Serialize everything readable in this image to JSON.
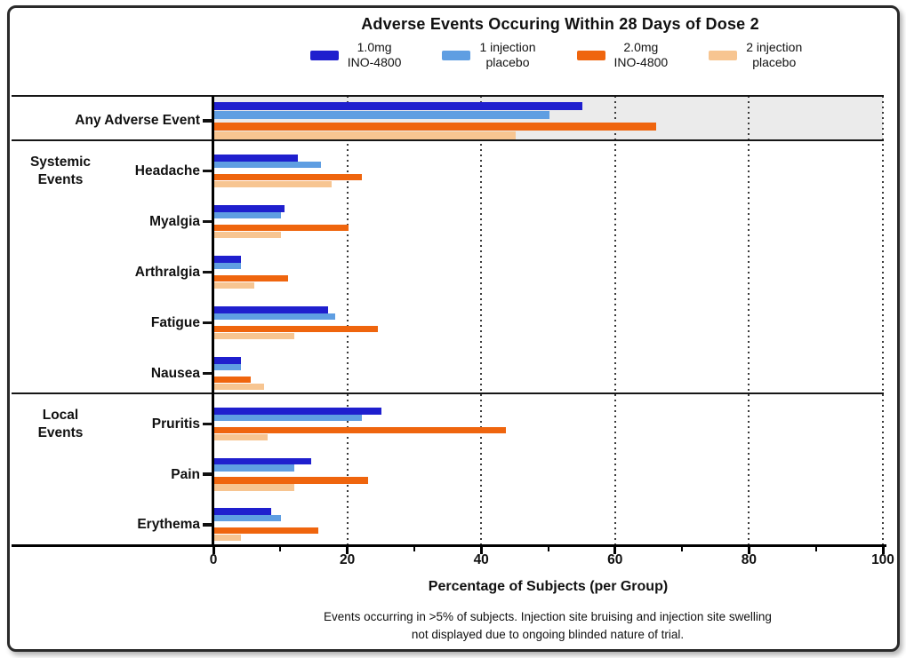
{
  "figure": {
    "title": "Adverse Events Occuring Within 28 Days of Dose 2",
    "x_axis_title": "Percentage of Subjects (per Group)",
    "footnote": "Events occurring in >5% of subjects. Injection site bruising and injection site swelling\nnot displayed due to ongoing blinded nature of trial."
  },
  "colors": {
    "dose_1mg": "#1f1fce",
    "placebo_1inj": "#5f9ee2",
    "dose_2mg": "#ef650e",
    "placebo_2inj": "#f7c591",
    "highlight_band": "#ebebeb",
    "axis": "#000000",
    "grid_dots": "#3a3a3a"
  },
  "chart_data": {
    "type": "bar",
    "orientation": "horizontal",
    "title": "Adverse Events Occuring Within 28 Days of Dose 2",
    "xlabel": "Percentage of Subjects (per Group)",
    "ylabel": "",
    "xlim": [
      0,
      100
    ],
    "xticks": [
      0,
      20,
      40,
      60,
      80,
      100
    ],
    "x_minor_ticks": [
      10,
      30,
      50,
      70,
      90
    ],
    "grid": "dotted vertical lines at major ticks",
    "legend_position": "top",
    "series": [
      {
        "name": "1.0mg INO-4800",
        "label_lines": "1.0mg\nINO-4800",
        "color": "#1f1fce"
      },
      {
        "name": "1 injection placebo",
        "label_lines": "1 injection\nplacebo",
        "color": "#5f9ee2"
      },
      {
        "name": "2.0mg INO-4800",
        "label_lines": "2.0mg\nINO-4800",
        "color": "#ef650e"
      },
      {
        "name": "2 injection placebo",
        "label_lines": "2 injection\nplacebo",
        "color": "#f7c591"
      }
    ],
    "groups": [
      {
        "label": "Any Adverse Event",
        "section": null,
        "highlighted": true,
        "values": [
          55,
          50,
          66,
          45
        ]
      },
      {
        "label": "Headache",
        "section": "Systemic Events",
        "highlighted": false,
        "values": [
          12.5,
          16,
          22,
          17.5
        ]
      },
      {
        "label": "Myalgia",
        "section": "Systemic Events",
        "highlighted": false,
        "values": [
          10.5,
          10,
          20,
          10
        ]
      },
      {
        "label": "Arthralgia",
        "section": "Systemic Events",
        "highlighted": false,
        "values": [
          4,
          4,
          11,
          6
        ]
      },
      {
        "label": "Fatigue",
        "section": "Systemic Events",
        "highlighted": false,
        "values": [
          17,
          18,
          24.5,
          12
        ]
      },
      {
        "label": "Nausea",
        "section": "Systemic Events",
        "highlighted": false,
        "values": [
          4,
          4,
          5.5,
          7.5
        ]
      },
      {
        "label": "Pruritis",
        "section": "Local Events",
        "highlighted": false,
        "values": [
          25,
          22,
          43.5,
          8
        ]
      },
      {
        "label": "Pain",
        "section": "Local Events",
        "highlighted": false,
        "values": [
          14.5,
          12,
          23,
          12
        ]
      },
      {
        "label": "Erythema",
        "section": "Local Events",
        "highlighted": false,
        "values": [
          8.5,
          10,
          15.5,
          4
        ]
      }
    ],
    "footnote": "Events occurring in >5% of subjects. Injection site bruising and injection site swelling not displayed due to ongoing blinded nature of trial."
  }
}
